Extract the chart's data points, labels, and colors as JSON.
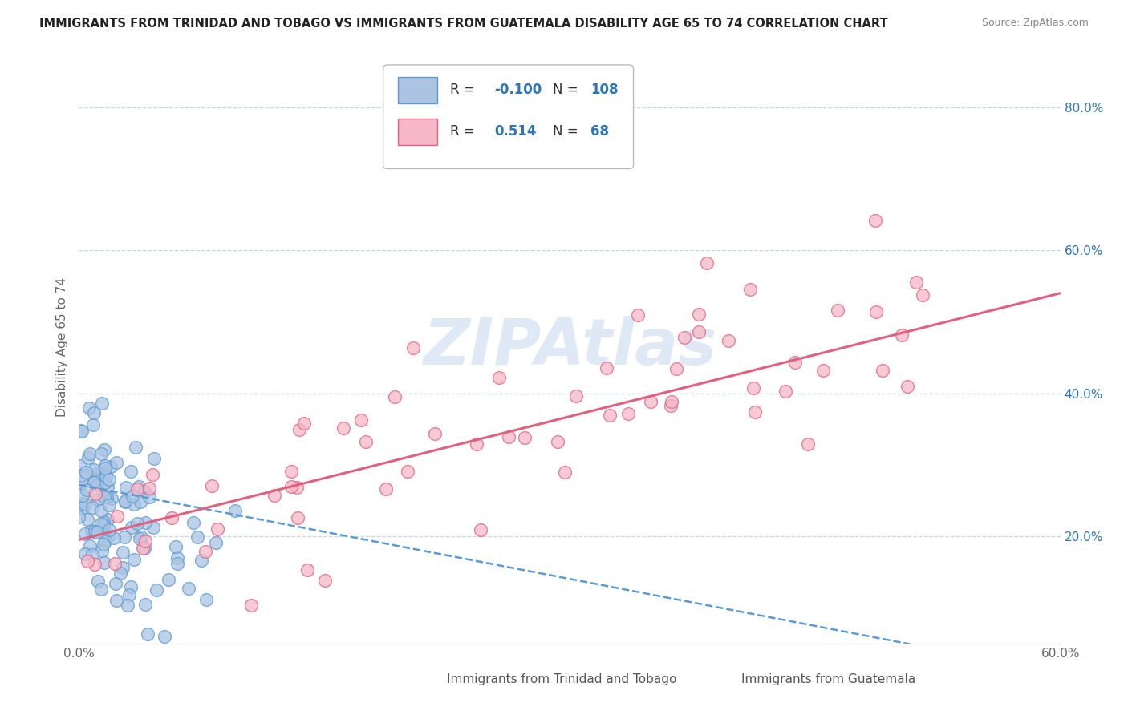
{
  "title": "IMMIGRANTS FROM TRINIDAD AND TOBAGO VS IMMIGRANTS FROM GUATEMALA DISABILITY AGE 65 TO 74 CORRELATION CHART",
  "source": "Source: ZipAtlas.com",
  "ylabel": "Disability Age 65 to 74",
  "xlim": [
    0.0,
    0.6
  ],
  "ylim": [
    0.05,
    0.88
  ],
  "xticks": [
    0.0,
    0.6
  ],
  "xticklabels": [
    "0.0%",
    "60.0%"
  ],
  "yticks": [
    0.2,
    0.4,
    0.6,
    0.8
  ],
  "yticklabels": [
    "20.0%",
    "40.0%",
    "60.0%",
    "80.0%"
  ],
  "series1_label": "Immigrants from Trinidad and Tobago",
  "series1_color": "#aac4e2",
  "series1_edge": "#5b9bd5",
  "series1_R": "-0.100",
  "series1_N": "108",
  "series2_label": "Immigrants from Guatemala",
  "series2_color": "#f4b8c8",
  "series2_edge": "#e06080",
  "series2_R": "0.514",
  "series2_N": "68",
  "legend_R_color": "#2e75b6",
  "trend1_color": "#5b9bd5",
  "trend2_color": "#e06080",
  "watermark": "ZIPAtlas",
  "watermark_color": "#c5d8f0",
  "background_color": "#ffffff",
  "grid_color": "#c8d4e8"
}
